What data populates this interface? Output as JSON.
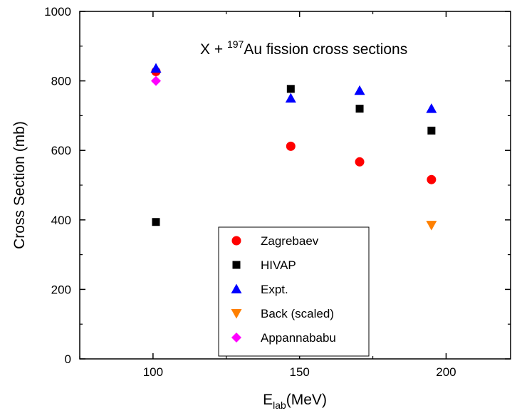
{
  "chart_data": {
    "type": "scatter",
    "title": "",
    "annotation": {
      "prefix": "X + ",
      "superscript": "197",
      "suffix": "Au fission cross sections"
    },
    "xlabel": {
      "main": "E",
      "subscript": "lab",
      "suffix": "(MeV)"
    },
    "ylabel": "Cross Section (mb)",
    "xlim": [
      75,
      222
    ],
    "ylim": [
      0,
      1000
    ],
    "xticks": [
      100,
      150,
      200
    ],
    "yticks": [
      0,
      200,
      400,
      600,
      800,
      1000
    ],
    "grid": false,
    "legend_position": "bottom-center",
    "series": [
      {
        "name": "Zagrebaev",
        "marker": "circle",
        "color": "#ff0000",
        "points": [
          [
            101,
            827
          ],
          [
            147,
            612
          ],
          [
            170.5,
            567
          ],
          [
            195,
            516
          ]
        ]
      },
      {
        "name": "HIVAP",
        "marker": "square",
        "color": "#000000",
        "points": [
          [
            101,
            394
          ],
          [
            147,
            777
          ],
          [
            170.5,
            720
          ],
          [
            195,
            657
          ]
        ]
      },
      {
        "name": "Expt.",
        "marker": "triangle-up",
        "color": "#0000ff",
        "points": [
          [
            101,
            836
          ],
          [
            147,
            750
          ],
          [
            170.5,
            772
          ],
          [
            195,
            720
          ]
        ]
      },
      {
        "name": "Back (scaled)",
        "marker": "triangle-down",
        "color": "#ff8000",
        "points": [
          [
            195,
            385
          ]
        ]
      },
      {
        "name": "Appannababu",
        "marker": "diamond",
        "color": "#ff00ff",
        "points": [
          [
            101,
            800
          ]
        ]
      }
    ]
  }
}
